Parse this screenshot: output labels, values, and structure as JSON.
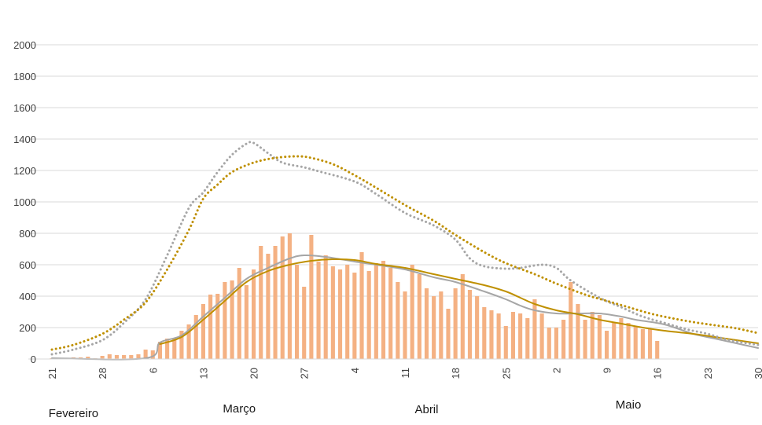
{
  "chart_data": {
    "type": "bar",
    "title": "",
    "xlabel": "",
    "ylabel": "",
    "ylim": [
      0,
      2000
    ],
    "y_ticks": [
      0,
      200,
      400,
      600,
      800,
      1000,
      1200,
      1400,
      1600,
      1800,
      2000
    ],
    "grid": true,
    "x_ticks": [
      {
        "day": 0,
        "label": "21"
      },
      {
        "day": 7,
        "label": "28"
      },
      {
        "day": 14,
        "label": "6"
      },
      {
        "day": 21,
        "label": "13"
      },
      {
        "day": 28,
        "label": "20"
      },
      {
        "day": 35,
        "label": "27"
      },
      {
        "day": 42,
        "label": "4"
      },
      {
        "day": 49,
        "label": "11"
      },
      {
        "day": 56,
        "label": "18"
      },
      {
        "day": 63,
        "label": "25"
      },
      {
        "day": 70,
        "label": "2"
      },
      {
        "day": 77,
        "label": "9"
      },
      {
        "day": 84,
        "label": "16"
      },
      {
        "day": 91,
        "label": "23"
      },
      {
        "day": 98,
        "label": "30"
      }
    ],
    "months": [
      {
        "label": "Fevereiro",
        "day": 3
      },
      {
        "label": "Março",
        "day": 26
      },
      {
        "label": "Abril",
        "day": 52
      },
      {
        "label": "Maio",
        "day": 80
      }
    ],
    "colors": {
      "bars": "#f4b183",
      "grey": "#a6a6a6",
      "gold": "#bf9000",
      "grid": "#d9d9d9",
      "axis": "#d9d9d9"
    },
    "bars": [
      5,
      5,
      5,
      10,
      10,
      15,
      5,
      20,
      30,
      25,
      25,
      25,
      30,
      60,
      55,
      110,
      130,
      130,
      180,
      220,
      280,
      350,
      410,
      415,
      490,
      500,
      580,
      470,
      570,
      720,
      670,
      720,
      780,
      800,
      600,
      460,
      790,
      620,
      660,
      590,
      570,
      600,
      550,
      680,
      560,
      610,
      625,
      580,
      490,
      430,
      600,
      540,
      450,
      400,
      430,
      320,
      450,
      540,
      440,
      400,
      330,
      310,
      290,
      210,
      300,
      290,
      260,
      380,
      290,
      200,
      200,
      250,
      490,
      350,
      250,
      300,
      280,
      180,
      230,
      260,
      230,
      210,
      190,
      190,
      115
    ],
    "series": [
      {
        "style": "solid",
        "color": "grey",
        "points": [
          [
            0,
            5
          ],
          [
            13,
            5
          ],
          [
            15,
            105
          ],
          [
            18,
            150
          ],
          [
            21,
            270
          ],
          [
            24,
            390
          ],
          [
            27,
            510
          ],
          [
            30,
            580
          ],
          [
            33,
            640
          ],
          [
            35,
            660
          ],
          [
            38,
            650
          ],
          [
            42,
            620
          ],
          [
            45,
            600
          ],
          [
            49,
            570
          ],
          [
            53,
            520
          ],
          [
            56,
            490
          ],
          [
            60,
            430
          ],
          [
            63,
            380
          ],
          [
            65,
            340
          ],
          [
            67,
            310
          ],
          [
            70,
            290
          ],
          [
            73,
            290
          ],
          [
            76,
            290
          ],
          [
            79,
            270
          ],
          [
            81,
            250
          ],
          [
            85,
            220
          ],
          [
            89,
            160
          ],
          [
            92,
            130
          ],
          [
            95,
            100
          ],
          [
            98,
            70
          ]
        ]
      },
      {
        "style": "solid",
        "color": "gold",
        "points": [
          [
            15,
            95
          ],
          [
            18,
            140
          ],
          [
            21,
            250
          ],
          [
            24,
            370
          ],
          [
            27,
            490
          ],
          [
            30,
            560
          ],
          [
            33,
            600
          ],
          [
            36,
            625
          ],
          [
            39,
            635
          ],
          [
            42,
            630
          ],
          [
            45,
            605
          ],
          [
            49,
            580
          ],
          [
            53,
            540
          ],
          [
            56,
            510
          ],
          [
            60,
            470
          ],
          [
            63,
            430
          ],
          [
            65,
            390
          ],
          [
            67,
            350
          ],
          [
            70,
            310
          ],
          [
            73,
            285
          ],
          [
            76,
            250
          ],
          [
            79,
            225
          ],
          [
            82,
            200
          ],
          [
            85,
            180
          ],
          [
            89,
            160
          ],
          [
            92,
            140
          ],
          [
            95,
            120
          ],
          [
            98,
            100
          ]
        ]
      },
      {
        "style": "dotted",
        "color": "grey",
        "points": [
          [
            0,
            30
          ],
          [
            3,
            60
          ],
          [
            7,
            120
          ],
          [
            10,
            230
          ],
          [
            13,
            380
          ],
          [
            16,
            660
          ],
          [
            19,
            960
          ],
          [
            21,
            1060
          ],
          [
            23,
            1190
          ],
          [
            25,
            1300
          ],
          [
            27,
            1370
          ],
          [
            28,
            1375
          ],
          [
            30,
            1310
          ],
          [
            32,
            1250
          ],
          [
            35,
            1220
          ],
          [
            37,
            1195
          ],
          [
            42,
            1130
          ],
          [
            45,
            1050
          ],
          [
            49,
            930
          ],
          [
            53,
            850
          ],
          [
            56,
            760
          ],
          [
            58,
            640
          ],
          [
            60,
            590
          ],
          [
            63,
            575
          ],
          [
            65,
            580
          ],
          [
            68,
            600
          ],
          [
            70,
            580
          ],
          [
            72,
            500
          ],
          [
            76,
            390
          ],
          [
            79,
            330
          ],
          [
            82,
            270
          ],
          [
            85,
            230
          ],
          [
            88,
            190
          ],
          [
            91,
            160
          ],
          [
            94,
            120
          ],
          [
            98,
            90
          ]
        ]
      },
      {
        "style": "dotted",
        "color": "gold",
        "points": [
          [
            0,
            60
          ],
          [
            3,
            90
          ],
          [
            7,
            160
          ],
          [
            10,
            250
          ],
          [
            13,
            360
          ],
          [
            16,
            570
          ],
          [
            19,
            820
          ],
          [
            21,
            1020
          ],
          [
            23,
            1110
          ],
          [
            25,
            1190
          ],
          [
            28,
            1250
          ],
          [
            31,
            1280
          ],
          [
            34,
            1290
          ],
          [
            36,
            1280
          ],
          [
            39,
            1240
          ],
          [
            42,
            1170
          ],
          [
            45,
            1090
          ],
          [
            49,
            980
          ],
          [
            53,
            880
          ],
          [
            56,
            790
          ],
          [
            60,
            680
          ],
          [
            63,
            610
          ],
          [
            67,
            540
          ],
          [
            70,
            480
          ],
          [
            74,
            410
          ],
          [
            77,
            370
          ],
          [
            80,
            330
          ],
          [
            83,
            290
          ],
          [
            86,
            260
          ],
          [
            89,
            235
          ],
          [
            92,
            215
          ],
          [
            95,
            195
          ],
          [
            98,
            165
          ]
        ]
      }
    ]
  }
}
